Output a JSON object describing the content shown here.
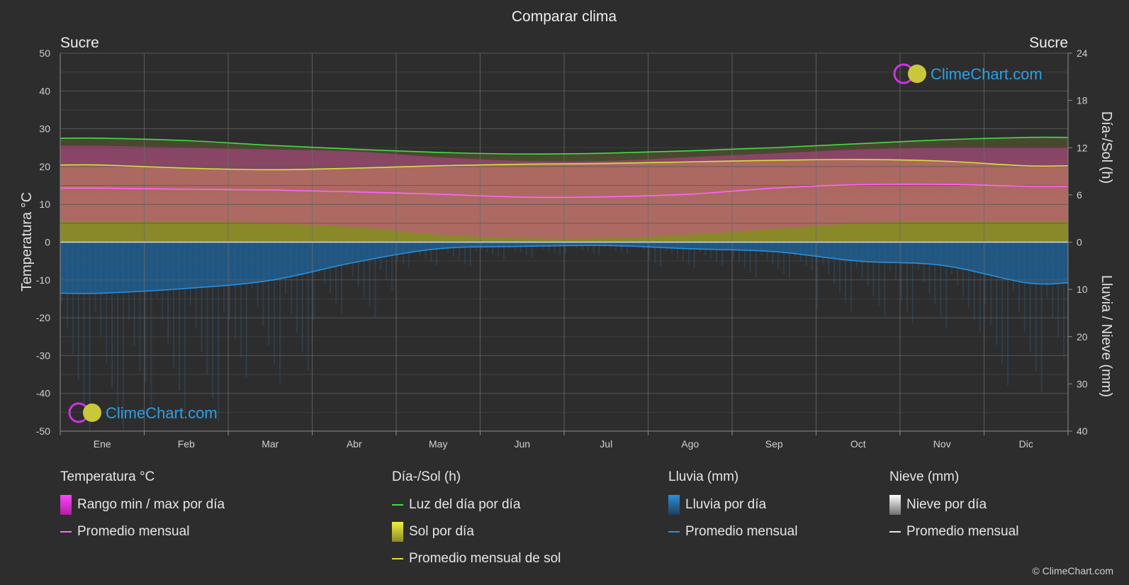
{
  "chart_data": {
    "type": "area",
    "title": "Comparar clima",
    "location_left": "Sucre",
    "location_right": "Sucre",
    "ylabel_left": "Temperatura °C",
    "ylabel_right_top": "Día-/Sol (h)",
    "ylabel_right_bottom": "Lluvia / Nieve (mm)",
    "categories": [
      "Ene",
      "Feb",
      "Mar",
      "Abr",
      "May",
      "Jun",
      "Jul",
      "Ago",
      "Sep",
      "Oct",
      "Nov",
      "Dic"
    ],
    "y_left_range": [
      -50,
      50
    ],
    "y_left_ticks": [
      "50",
      "40",
      "30",
      "20",
      "10",
      "0",
      "-10",
      "-20",
      "-30",
      "-40",
      "-50"
    ],
    "y_right_top_range": [
      0,
      24
    ],
    "y_right_top_ticks": [
      "24",
      "18",
      "12",
      "6",
      "0"
    ],
    "y_right_bottom_range": [
      0,
      40
    ],
    "y_right_bottom_ticks": [
      "10",
      "20",
      "30",
      "40"
    ],
    "series": {
      "daylight_hours": [
        13.2,
        12.9,
        12.3,
        11.8,
        11.4,
        11.2,
        11.3,
        11.6,
        12.0,
        12.5,
        13.0,
        13.3
      ],
      "sunshine_avg_hours": [
        9.8,
        9.4,
        9.2,
        9.4,
        9.7,
        9.9,
        10.0,
        10.2,
        10.4,
        10.5,
        10.3,
        9.7
      ],
      "temp_mean_monthly": [
        14.3,
        14.0,
        13.8,
        13.3,
        12.7,
        11.9,
        12.0,
        12.7,
        14.3,
        15.2,
        15.3,
        14.8
      ],
      "temp_max_daily_avg": [
        25.5,
        25.0,
        24.5,
        24.0,
        22.5,
        21.5,
        21.5,
        22.5,
        23.5,
        24.5,
        25.0,
        25.0
      ],
      "temp_min_daily_avg": [
        5.5,
        5.5,
        5.0,
        4.0,
        2.0,
        1.0,
        1.0,
        2.0,
        3.5,
        5.0,
        5.5,
        5.5
      ],
      "rain_monthly_avg_mm": [
        10.8,
        9.8,
        8.1,
        4.3,
        1.4,
        0.9,
        0.7,
        1.4,
        2.0,
        4.0,
        4.9,
        8.6
      ],
      "snow_monthly_avg_mm": [
        0,
        0,
        0,
        0,
        0,
        0,
        0,
        0,
        0,
        0,
        0,
        0
      ]
    },
    "grid": true
  },
  "brand": {
    "name": "ClimeChart.com",
    "copyright": "© ClimeChart.com"
  },
  "legend": {
    "temperature": {
      "title": "Temperatura °C",
      "range": "Rango min / max por día",
      "mean": "Promedio mensual"
    },
    "sun": {
      "title": "Día-/Sol (h)",
      "daylight": "Luz del día por día",
      "sunshine": "Sol por día",
      "sun_mean": "Promedio mensual de sol"
    },
    "rain": {
      "title": "Lluvia (mm)",
      "daily": "Lluvia por día",
      "mean": "Promedio mensual"
    },
    "snow": {
      "title": "Nieve (mm)",
      "daily": "Nieve por día",
      "mean": "Promedio mensual"
    }
  },
  "colors": {
    "daylight": "#44dd44",
    "sunshine_mean": "#dede3a",
    "temp_mean": "#ff66ff",
    "rain_mean": "#2a8fdc",
    "temp_range": "#e040b0",
    "sun_fill": "#9b9b2a",
    "rain_fill": "#1e5f92",
    "brand_text": "#2aa0e6"
  }
}
